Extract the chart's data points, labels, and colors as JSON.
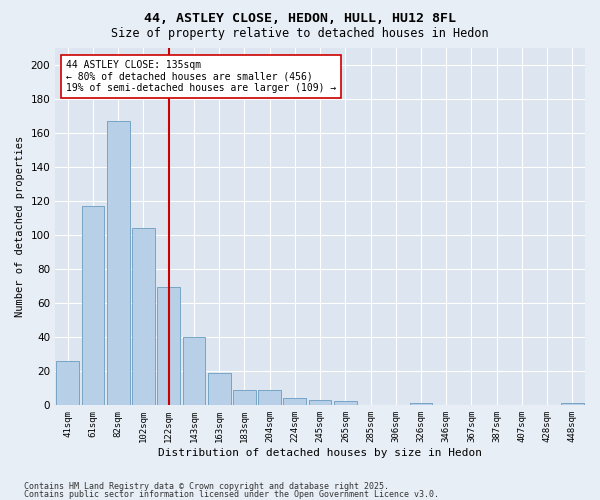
{
  "title1": "44, ASTLEY CLOSE, HEDON, HULL, HU12 8FL",
  "title2": "Size of property relative to detached houses in Hedon",
  "xlabel": "Distribution of detached houses by size in Hedon",
  "ylabel": "Number of detached properties",
  "categories": [
    "41sqm",
    "61sqm",
    "82sqm",
    "102sqm",
    "122sqm",
    "143sqm",
    "163sqm",
    "183sqm",
    "204sqm",
    "224sqm",
    "245sqm",
    "265sqm",
    "285sqm",
    "306sqm",
    "326sqm",
    "346sqm",
    "367sqm",
    "387sqm",
    "407sqm",
    "428sqm",
    "448sqm"
  ],
  "values": [
    26,
    117,
    167,
    104,
    69,
    40,
    19,
    9,
    9,
    4,
    3,
    2,
    0,
    0,
    1,
    0,
    0,
    0,
    0,
    0,
    1
  ],
  "bar_color": "#b8cfe8",
  "bar_edge_color": "#6a9cc0",
  "bar_edge_width": 0.6,
  "vline_color": "#cc0000",
  "vline_x_index": 4.5,
  "annotation_line1": "44 ASTLEY CLOSE: 135sqm",
  "annotation_line2": "← 80% of detached houses are smaller (456)",
  "annotation_line3": "19% of semi-detached houses are larger (109) →",
  "annotation_box_edgecolor": "#cc0000",
  "annotation_box_facecolor": "#ffffff",
  "background_color": "#dde6f0",
  "grid_color": "#ffffff",
  "fig_facecolor": "#e8eef6",
  "ylim": [
    0,
    210
  ],
  "yticks": [
    0,
    20,
    40,
    60,
    80,
    100,
    120,
    140,
    160,
    180,
    200
  ],
  "footnote1": "Contains HM Land Registry data © Crown copyright and database right 2025.",
  "footnote2": "Contains public sector information licensed under the Open Government Licence v3.0."
}
